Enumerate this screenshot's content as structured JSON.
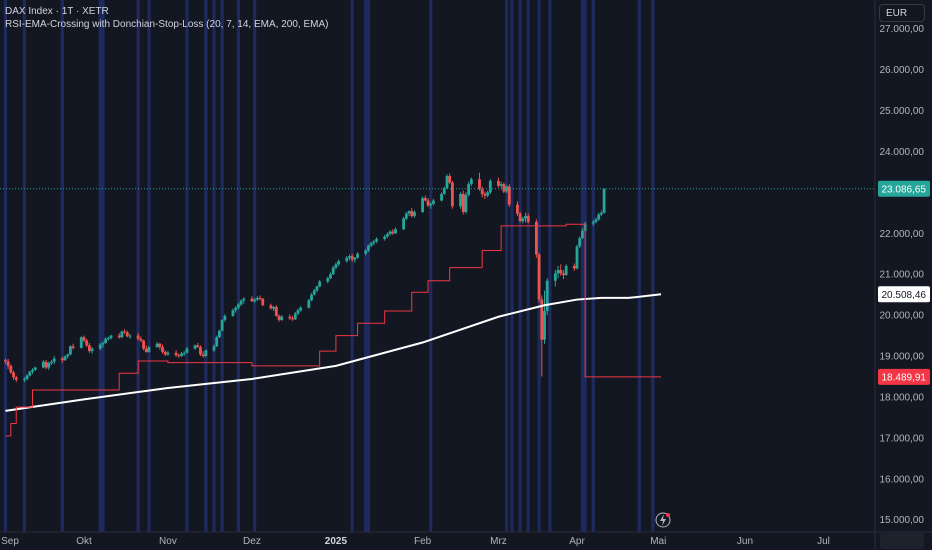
{
  "legend": {
    "symbol_line": "DAX Index · 1T · XETR",
    "indicator_line": "RSI-EMA-Crossing with Donchian-Stop-Loss (20, 7, 14, EMA, 200, EMA)"
  },
  "currency_button": "EUR",
  "price_axis": {
    "ticks": [
      "27.000,00",
      "26.000,00",
      "25.000,00",
      "24.000,00",
      "22.000,00",
      "21.000,00",
      "20.000,00",
      "19.000,00",
      "18.000,00",
      "17.000,00",
      "16.000,00",
      "15.000,00"
    ],
    "tick_values": [
      27000,
      26000,
      25000,
      24000,
      22000,
      21000,
      20000,
      19000,
      18000,
      17000,
      16000,
      15000
    ],
    "current_price": {
      "label": "23.086,65",
      "value": 23086.65,
      "color": "#26a69a"
    },
    "ema_label": {
      "label": "20.508,46",
      "value": 20508.46,
      "color": "#ffffff"
    },
    "stop_label": {
      "label": "18.489,91",
      "value": 18489.91,
      "color": "#f23645"
    }
  },
  "time_axis": {
    "labels": [
      "Sep",
      "Okt",
      "Nov",
      "Dez",
      "2025",
      "Feb",
      "Mrz",
      "Apr",
      "Mai",
      "Jun",
      "Jul"
    ],
    "label_x_dates": [
      "2024-09-02",
      "2024-10-01",
      "2024-11-01",
      "2024-12-02",
      "2025-01-02",
      "2025-02-03",
      "2025-03-03",
      "2025-04-01",
      "2025-05-01",
      "2025-06-02",
      "2025-07-01"
    ]
  },
  "colors": {
    "background": "#131722",
    "up": "#26a69a",
    "down": "#ef5350",
    "ema": "#ffffff",
    "stop_line": "#f23645",
    "signal_band": "#1e2a5e"
  },
  "chart_data": {
    "type": "candlestick",
    "title": "DAX Index · 1T · XETR",
    "ylim": [
      14700,
      27700
    ],
    "x_range": [
      "2024-08-31",
      "2025-07-20"
    ],
    "grid": false,
    "legend_position": "top-left",
    "ohlc": {
      "start_date": "2024-09-02",
      "frequency": "trading-day",
      "values": [
        [
          18900,
          18940,
          18800,
          18870
        ],
        [
          18870,
          18930,
          18680,
          18760
        ],
        [
          18760,
          18800,
          18560,
          18600
        ],
        [
          18600,
          18640,
          18420,
          18480
        ],
        [
          18480,
          18520,
          18360,
          18420
        ],
        [
          18420,
          18480,
          18360,
          18440
        ],
        [
          18440,
          18560,
          18400,
          18520
        ],
        [
          18520,
          18640,
          18500,
          18620
        ],
        [
          18620,
          18700,
          18560,
          18660
        ],
        [
          18660,
          18740,
          18640,
          18720
        ],
        [
          18720,
          18900,
          18700,
          18860
        ],
        [
          18860,
          18900,
          18680,
          18720
        ],
        [
          18720,
          18860,
          18660,
          18830
        ],
        [
          18830,
          18900,
          18780,
          18860
        ],
        [
          18860,
          19000,
          18800,
          18940
        ],
        [
          18940,
          18980,
          18840,
          18900
        ],
        [
          18900,
          19020,
          18880,
          18990
        ],
        [
          18990,
          19060,
          18940,
          19040
        ],
        [
          19040,
          19260,
          19020,
          19240
        ],
        [
          19240,
          19300,
          19160,
          19200
        ],
        [
          19200,
          19480,
          19180,
          19460
        ],
        [
          19460,
          19500,
          19340,
          19380
        ],
        [
          19380,
          19420,
          19220,
          19260
        ],
        [
          19260,
          19320,
          19080,
          19120
        ],
        [
          19120,
          19220,
          19060,
          19180
        ],
        [
          19180,
          19320,
          19140,
          19280
        ],
        [
          19280,
          19360,
          19200,
          19320
        ],
        [
          19320,
          19460,
          19300,
          19420
        ],
        [
          19420,
          19480,
          19380,
          19440
        ],
        [
          19440,
          19520,
          19400,
          19500
        ],
        [
          19500,
          19560,
          19420,
          19460
        ],
        [
          19460,
          19620,
          19440,
          19600
        ],
        [
          19600,
          19660,
          19540,
          19580
        ],
        [
          19580,
          19620,
          19460,
          19480
        ],
        [
          19480,
          19540,
          19420,
          19500
        ],
        [
          19500,
          19560,
          19380,
          19420
        ],
        [
          19420,
          19480,
          19340,
          19380
        ],
        [
          19380,
          19400,
          19140,
          19180
        ],
        [
          19180,
          19260,
          19080,
          19100
        ],
        [
          19100,
          19240,
          19080,
          19220
        ],
        [
          19220,
          19340,
          19200,
          19300
        ],
        [
          19300,
          19320,
          19160,
          19220
        ],
        [
          19220,
          19280,
          19060,
          19100
        ],
        [
          19100,
          19140,
          19000,
          19040
        ],
        [
          19040,
          19120,
          19000,
          19080
        ],
        [
          19080,
          19140,
          18980,
          19020
        ],
        [
          19020,
          19060,
          18960,
          19000
        ],
        [
          19000,
          19100,
          18980,
          19060
        ],
        [
          19060,
          19120,
          19000,
          19080
        ],
        [
          19080,
          19220,
          19060,
          19180
        ],
        [
          19180,
          19280,
          19160,
          19260
        ],
        [
          19260,
          19320,
          19200,
          19220
        ],
        [
          19220,
          19260,
          19000,
          19040
        ],
        [
          19040,
          19120,
          18960,
          19000
        ],
        [
          19000,
          19160,
          18980,
          19140
        ],
        [
          19140,
          19280,
          19100,
          19240
        ],
        [
          19240,
          19500,
          19220,
          19460
        ],
        [
          19460,
          19640,
          19440,
          19620
        ],
        [
          19620,
          19900,
          19600,
          19880
        ],
        [
          19880,
          20020,
          19840,
          19980
        ],
        [
          19980,
          20160,
          19960,
          20120
        ],
        [
          20120,
          20220,
          20060,
          20180
        ],
        [
          20180,
          20300,
          20140,
          20260
        ],
        [
          20260,
          20380,
          20220,
          20360
        ],
        [
          20360,
          20440,
          20280,
          20400
        ],
        [
          20400,
          20460,
          20320,
          20340
        ],
        [
          20340,
          20420,
          20300,
          20380
        ],
        [
          20380,
          20460,
          20340,
          20420
        ],
        [
          20420,
          20480,
          20360,
          20400
        ],
        [
          20400,
          20420,
          20220,
          20240
        ],
        [
          20240,
          20280,
          20140,
          20160
        ],
        [
          20160,
          20220,
          20100,
          20200
        ],
        [
          20200,
          20240,
          19960,
          19980
        ],
        [
          19980,
          20020,
          19840,
          19880
        ],
        [
          19880,
          20000,
          19860,
          19960
        ],
        [
          19960,
          20020,
          19880,
          19920
        ],
        [
          19920,
          19980,
          19860,
          19900
        ],
        [
          19900,
          20080,
          19880,
          20040
        ],
        [
          20040,
          20160,
          20000,
          20120
        ],
        [
          20120,
          20220,
          20080,
          20180
        ],
        [
          20180,
          20400,
          20160,
          20360
        ],
        [
          20360,
          20540,
          20340,
          20500
        ],
        [
          20500,
          20640,
          20480,
          20600
        ],
        [
          20600,
          20720,
          20560,
          20700
        ],
        [
          20700,
          20860,
          20680,
          20820
        ],
        [
          20820,
          20940,
          20780,
          20900
        ],
        [
          20900,
          21040,
          20880,
          21000
        ],
        [
          21000,
          21200,
          20980,
          21160
        ],
        [
          21160,
          21280,
          21120,
          21240
        ],
        [
          21240,
          21360,
          21200,
          21320
        ],
        [
          21320,
          21440,
          21280,
          21400
        ],
        [
          21400,
          21480,
          21340,
          21440
        ],
        [
          21440,
          21500,
          21300,
          21360
        ],
        [
          21360,
          21420,
          21280,
          21400
        ],
        [
          21400,
          21540,
          21380,
          21500
        ],
        [
          21500,
          21620,
          21460,
          21580
        ],
        [
          21580,
          21720,
          21540,
          21700
        ],
        [
          21700,
          21800,
          21660,
          21760
        ],
        [
          21760,
          21840,
          21700,
          21800
        ],
        [
          21800,
          21900,
          21760,
          21860
        ],
        [
          21860,
          21960,
          21820,
          21920
        ],
        [
          21920,
          22020,
          21880,
          21980
        ],
        [
          21980,
          22080,
          21940,
          22040
        ],
        [
          22040,
          22100,
          21960,
          22000
        ],
        [
          22000,
          22140,
          21980,
          22100
        ],
        [
          22100,
          22400,
          22080,
          22360
        ],
        [
          22360,
          22520,
          22320,
          22480
        ],
        [
          22480,
          22560,
          22420,
          22540
        ],
        [
          22540,
          22620,
          22380,
          22420
        ],
        [
          22420,
          22560,
          22380,
          22520
        ],
        [
          22520,
          22900,
          22500,
          22860
        ],
        [
          22860,
          22920,
          22780,
          22800
        ],
        [
          22800,
          22860,
          22640,
          22680
        ],
        [
          22680,
          22760,
          22600,
          22720
        ],
        [
          22720,
          22840,
          22680,
          22800
        ],
        [
          22800,
          23000,
          22780,
          22960
        ],
        [
          22960,
          23140,
          22940,
          23100
        ],
        [
          23100,
          23440,
          23080,
          23400
        ],
        [
          23400,
          23460,
          23200,
          23240
        ],
        [
          23240,
          23280,
          22600,
          22660
        ],
        [
          22660,
          23000,
          22600,
          22960
        ],
        [
          22960,
          23040,
          22460,
          22520
        ],
        [
          22520,
          23000,
          22480,
          22940
        ],
        [
          22940,
          23260,
          22900,
          23200
        ],
        [
          23200,
          23360,
          23160,
          23320
        ],
        [
          23320,
          23480,
          23040,
          23080
        ],
        [
          23080,
          23140,
          22880,
          22960
        ],
        [
          22960,
          23020,
          22840,
          22920
        ],
        [
          22920,
          23040,
          22880,
          23000
        ],
        [
          23000,
          23320,
          22960,
          23280
        ],
        [
          23280,
          23360,
          23120,
          23160
        ],
        [
          23160,
          23260,
          23100,
          23200
        ],
        [
          23200,
          23240,
          22980,
          23020
        ],
        [
          23020,
          23180,
          22980,
          23140
        ],
        [
          23140,
          23200,
          22640,
          22700
        ],
        [
          22700,
          22780,
          22420,
          22480
        ],
        [
          22480,
          22520,
          22260,
          22300
        ],
        [
          22300,
          22400,
          22240,
          22360
        ],
        [
          22360,
          22500,
          22260,
          22420
        ],
        [
          22420,
          22480,
          22240,
          22280
        ],
        [
          22280,
          22340,
          21400,
          21480
        ],
        [
          21480,
          21520,
          20300,
          20380
        ],
        [
          20380,
          20480,
          18500,
          19400
        ],
        [
          19400,
          20600,
          19300,
          20100
        ],
        [
          20100,
          20900,
          20000,
          20840
        ],
        [
          20840,
          21100,
          20700,
          21020
        ],
        [
          21020,
          21200,
          20900,
          21100
        ],
        [
          21100,
          21240,
          20960,
          21020
        ],
        [
          21020,
          21100,
          20880,
          20980
        ],
        [
          20980,
          21240,
          20960,
          21200
        ],
        [
          21200,
          21260,
          21080,
          21140
        ],
        [
          21140,
          21720,
          21120,
          21680
        ],
        [
          21680,
          21920,
          21640,
          21880
        ],
        [
          21880,
          22120,
          21860,
          22060
        ],
        [
          22060,
          22280,
          22020,
          22240
        ],
        [
          22240,
          22320,
          22180,
          22280
        ],
        [
          22280,
          22380,
          22240,
          22340
        ],
        [
          22340,
          22500,
          22300,
          22460
        ],
        [
          22460,
          22560,
          22420,
          22500
        ],
        [
          22500,
          23100,
          22480,
          23086.65
        ]
      ]
    },
    "series": [
      {
        "name": "EMA (200)",
        "color": "#ffffff",
        "points": [
          [
            "2024-09-02",
            17660
          ],
          [
            "2024-10-01",
            17940
          ],
          [
            "2024-11-01",
            18220
          ],
          [
            "2024-12-02",
            18440
          ],
          [
            "2025-01-02",
            18760
          ],
          [
            "2025-02-03",
            19330
          ],
          [
            "2025-03-03",
            19960
          ],
          [
            "2025-03-20",
            20240
          ],
          [
            "2025-04-01",
            20380
          ],
          [
            "2025-04-10",
            20420
          ],
          [
            "2025-04-20",
            20420
          ],
          [
            "2025-05-02",
            20508.46
          ]
        ]
      },
      {
        "name": "Donchian Stop-Loss",
        "color": "#f23645",
        "points": [
          [
            "2024-09-02",
            17050
          ],
          [
            "2024-09-04",
            17350
          ],
          [
            "2024-09-06",
            17750
          ],
          [
            "2024-09-12",
            18170
          ],
          [
            "2024-10-01",
            18170
          ],
          [
            "2024-10-14",
            18580
          ],
          [
            "2024-10-21",
            18880
          ],
          [
            "2024-11-01",
            18840
          ],
          [
            "2024-11-20",
            18840
          ],
          [
            "2024-12-02",
            18760
          ],
          [
            "2024-12-22",
            18760
          ],
          [
            "2024-12-27",
            19120
          ],
          [
            "2025-01-02",
            19500
          ],
          [
            "2025-01-10",
            19800
          ],
          [
            "2025-01-20",
            20100
          ],
          [
            "2025-01-30",
            20560
          ],
          [
            "2025-02-05",
            20840
          ],
          [
            "2025-02-13",
            21160
          ],
          [
            "2025-02-25",
            21580
          ],
          [
            "2025-03-04",
            22180
          ],
          [
            "2025-03-28",
            22220
          ],
          [
            "2025-04-03",
            22220
          ],
          [
            "2025-04-04",
            18489.91
          ],
          [
            "2025-05-02",
            18489.91
          ]
        ]
      }
    ],
    "signal_dates": [
      "2024-09-02",
      "2024-09-09",
      "2024-09-23",
      "2024-10-07",
      "2024-10-08",
      "2024-10-21",
      "2024-10-25",
      "2024-11-08",
      "2024-11-15",
      "2024-11-18",
      "2024-11-21",
      "2024-11-27",
      "2024-12-03",
      "2025-01-08",
      "2025-01-13",
      "2025-01-14",
      "2025-02-06",
      "2025-03-06",
      "2025-03-08",
      "2025-03-11",
      "2025-03-14",
      "2025-03-18",
      "2025-03-22",
      "2025-04-03",
      "2025-04-04",
      "2025-04-07",
      "2025-04-24",
      "2025-04-29"
    ]
  },
  "status_icon": "lightning-bolt-icon"
}
